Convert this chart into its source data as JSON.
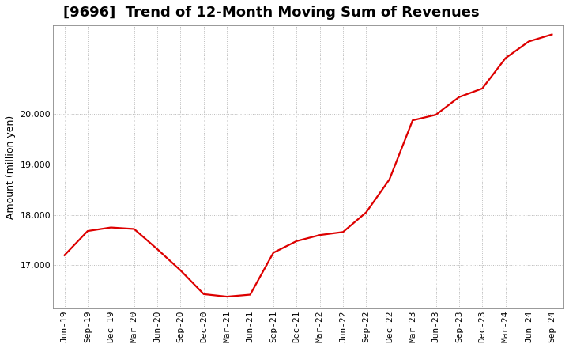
{
  "title": "[9696]  Trend of 12-Month Moving Sum of Revenues",
  "ylabel": "Amount (million yen)",
  "line_color": "#dd0000",
  "background_color": "#ffffff",
  "plot_bg_color": "#ffffff",
  "grid_color": "#bbbbbb",
  "x_labels": [
    "Jun-19",
    "Sep-19",
    "Dec-19",
    "Mar-20",
    "Jun-20",
    "Sep-20",
    "Dec-20",
    "Mar-21",
    "Jun-21",
    "Sep-21",
    "Dec-21",
    "Mar-22",
    "Jun-22",
    "Sep-22",
    "Dec-22",
    "Mar-23",
    "Jun-23",
    "Sep-23",
    "Dec-23",
    "Mar-24",
    "Jun-24",
    "Sep-24"
  ],
  "values": [
    17200,
    17680,
    17750,
    17720,
    17320,
    16900,
    16430,
    16380,
    16420,
    17250,
    17480,
    17600,
    17660,
    18050,
    18700,
    19870,
    19980,
    20330,
    20500,
    21100,
    21430,
    21570
  ],
  "ylim_min": 16150,
  "ylim_max": 21750,
  "yticks": [
    17000,
    18000,
    19000,
    20000
  ],
  "title_fontsize": 13,
  "axis_fontsize": 9,
  "tick_fontsize": 8
}
